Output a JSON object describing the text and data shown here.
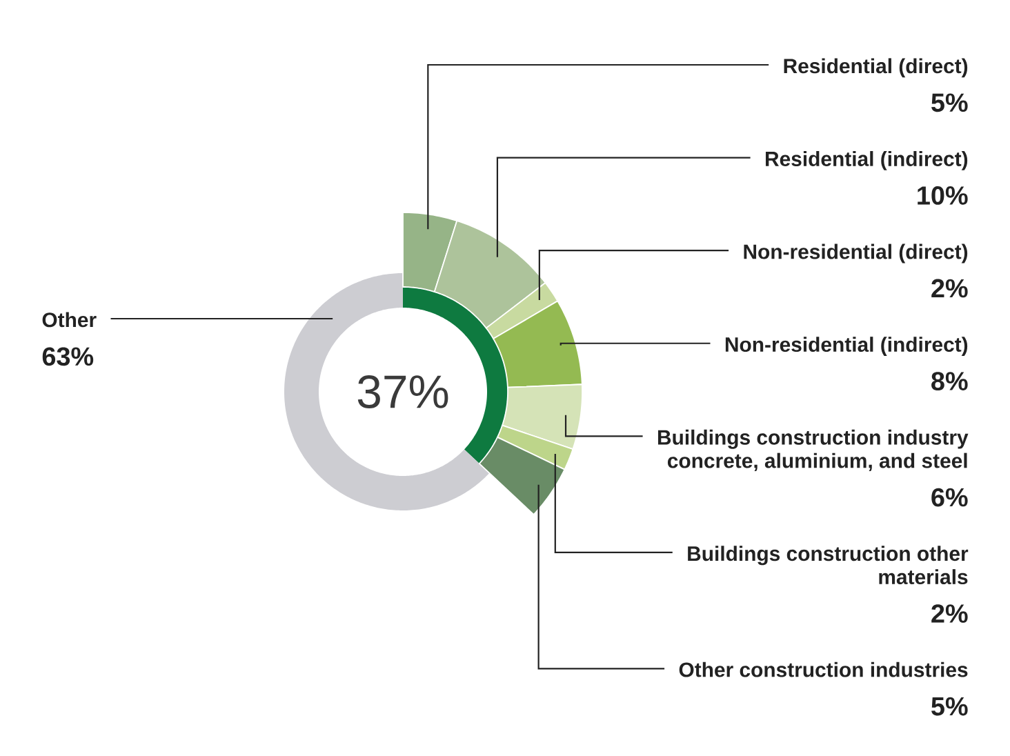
{
  "chart_data": [
    {
      "type": "donut",
      "categories": [
        "Residential (direct)",
        "Residential (indirect)",
        "Non-residential (direct)",
        "Non-residential (indirect)",
        "Buildings construction industry concrete, aluminium, and steel",
        "Buildings construction other materials",
        "Other construction industries"
      ],
      "values": [
        5,
        10,
        2,
        8,
        6,
        2,
        5
      ],
      "colors": [
        "#96b487",
        "#adc39b",
        "#c8daa0",
        "#94ba52",
        "#d5e3b7",
        "#bdd58a",
        "#698c66"
      ],
      "value_labels": [
        "5%",
        "10%",
        "2%",
        "8%",
        "6%",
        "2%",
        "5%"
      ]
    },
    {
      "type": "donut",
      "categories": [
        null,
        "Other"
      ],
      "values": [
        37,
        63
      ],
      "colors": [
        "#0e7a40",
        "#cdcdd2"
      ],
      "value_labels": [
        null,
        "63%"
      ],
      "annotations": [
        "37%"
      ]
    }
  ]
}
